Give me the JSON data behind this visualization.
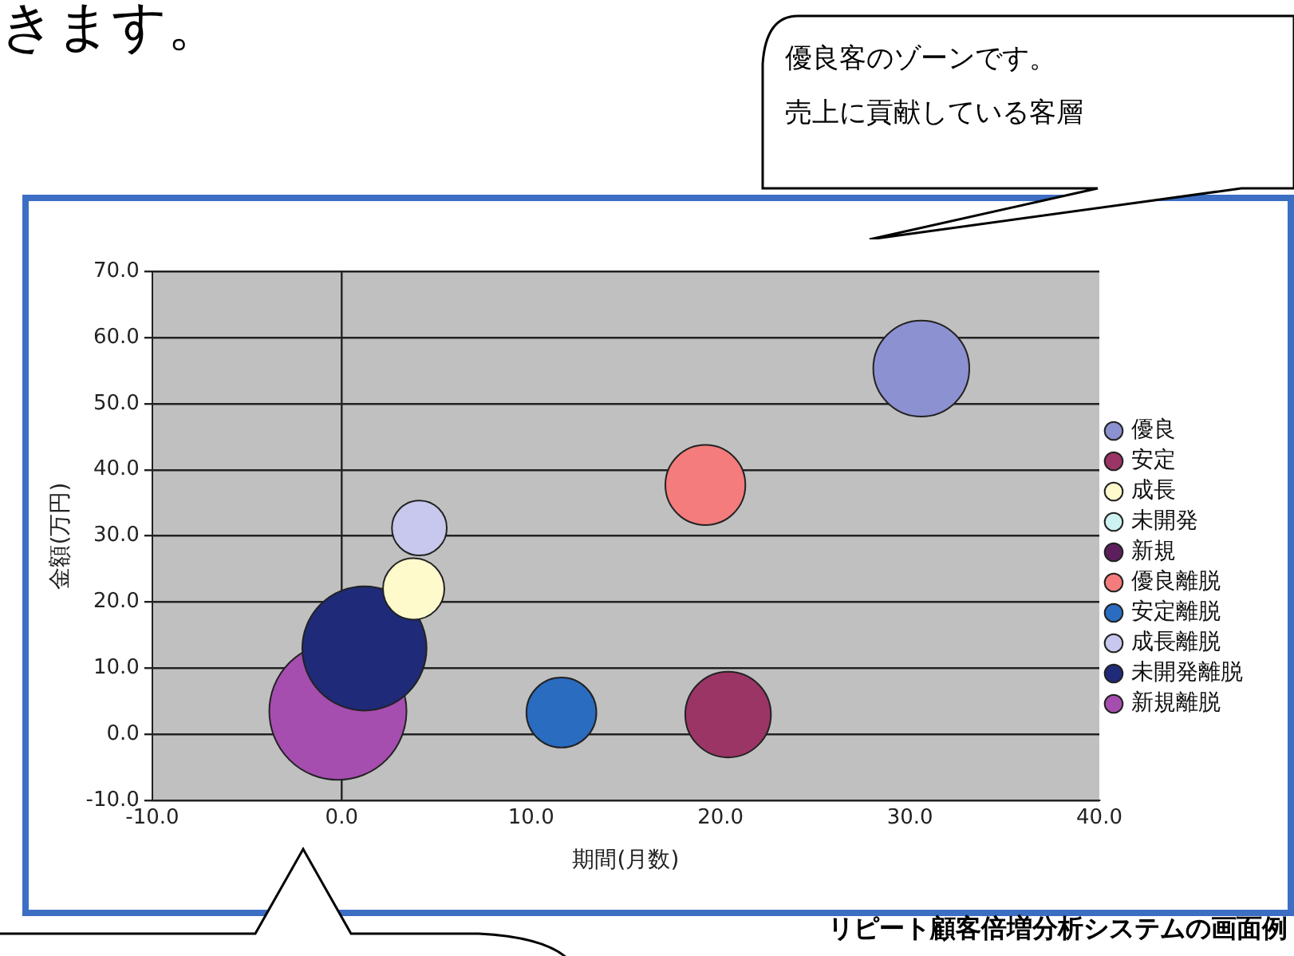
{
  "chart_data": {
    "type": "bubble",
    "xlabel": "期間(月数)",
    "ylabel": "金額(万円)",
    "xlim": [
      -10,
      40
    ],
    "xticks": [
      {
        "value": -10,
        "label": "-10.0"
      },
      {
        "value": 0,
        "label": "0.0"
      },
      {
        "value": 10,
        "label": "10.0"
      },
      {
        "value": 20,
        "label": "20.0"
      },
      {
        "value": 30,
        "label": "30.0"
      },
      {
        "value": 40,
        "label": "40.0"
      }
    ],
    "ylim": [
      -10,
      70
    ],
    "yticks": [
      {
        "value": -10,
        "label": "-10.0"
      },
      {
        "value": 0,
        "label": "0.0"
      },
      {
        "value": 10,
        "label": "10.0"
      },
      {
        "value": 20,
        "label": "20.0"
      },
      {
        "value": 30,
        "label": "30.0"
      },
      {
        "value": 40,
        "label": "40.0"
      },
      {
        "value": 50,
        "label": "50.0"
      },
      {
        "value": 60,
        "label": "60.0"
      },
      {
        "value": 70,
        "label": "70.0"
      }
    ],
    "grid": "y",
    "legend": "right",
    "marker": "circle",
    "ref_lines": [
      {
        "axis": "x",
        "value": 0
      }
    ],
    "series": [
      {
        "name": "優良",
        "color": "#8c91d2",
        "x": [
          30.6
        ],
        "values": [
          55.3
        ],
        "sizes": [
          0.49
        ]
      },
      {
        "name": "安定",
        "color": "#9b3565",
        "x": [
          20.4
        ],
        "values": [
          3
        ],
        "sizes": [
          0.39
        ]
      },
      {
        "name": "成長",
        "color": "#fffacc",
        "x": [
          3.8
        ],
        "values": [
          22
        ],
        "sizes": [
          0.2
        ]
      },
      {
        "name": "未開発",
        "color": "#ccf2f2",
        "x": [
          null
        ],
        "values": [
          null
        ],
        "sizes": [
          null
        ]
      },
      {
        "name": "新規",
        "color": "#5c1f5c",
        "x": [
          null
        ],
        "values": [
          null
        ],
        "sizes": [
          null
        ]
      },
      {
        "name": "優良離脱",
        "color": "#f47c7c",
        "x": [
          19.2
        ],
        "values": [
          37.7
        ],
        "sizes": [
          0.34
        ]
      },
      {
        "name": "安定離脱",
        "color": "#2a6cc0",
        "x": [
          11.6
        ],
        "values": [
          3.3
        ],
        "sizes": [
          0.26
        ]
      },
      {
        "name": "成長離脱",
        "color": "#c8c8ee",
        "x": [
          4.1
        ],
        "values": [
          31.2
        ],
        "sizes": [
          0.16
        ]
      },
      {
        "name": "未開発離脱",
        "color": "#1f2a78",
        "x": [
          1.2
        ],
        "values": [
          13
        ],
        "sizes": [
          0.82
        ]
      },
      {
        "name": "新規離脱",
        "color": "#a64db0",
        "x": [
          -0.2
        ],
        "values": [
          3.5
        ],
        "sizes": [
          1
        ]
      }
    ],
    "annotations": [
      "きます。",
      "優良客のゾーンです。",
      "売上に貢献している客層",
      "リピート顧客倍増分析システムの画面例"
    ]
  }
}
